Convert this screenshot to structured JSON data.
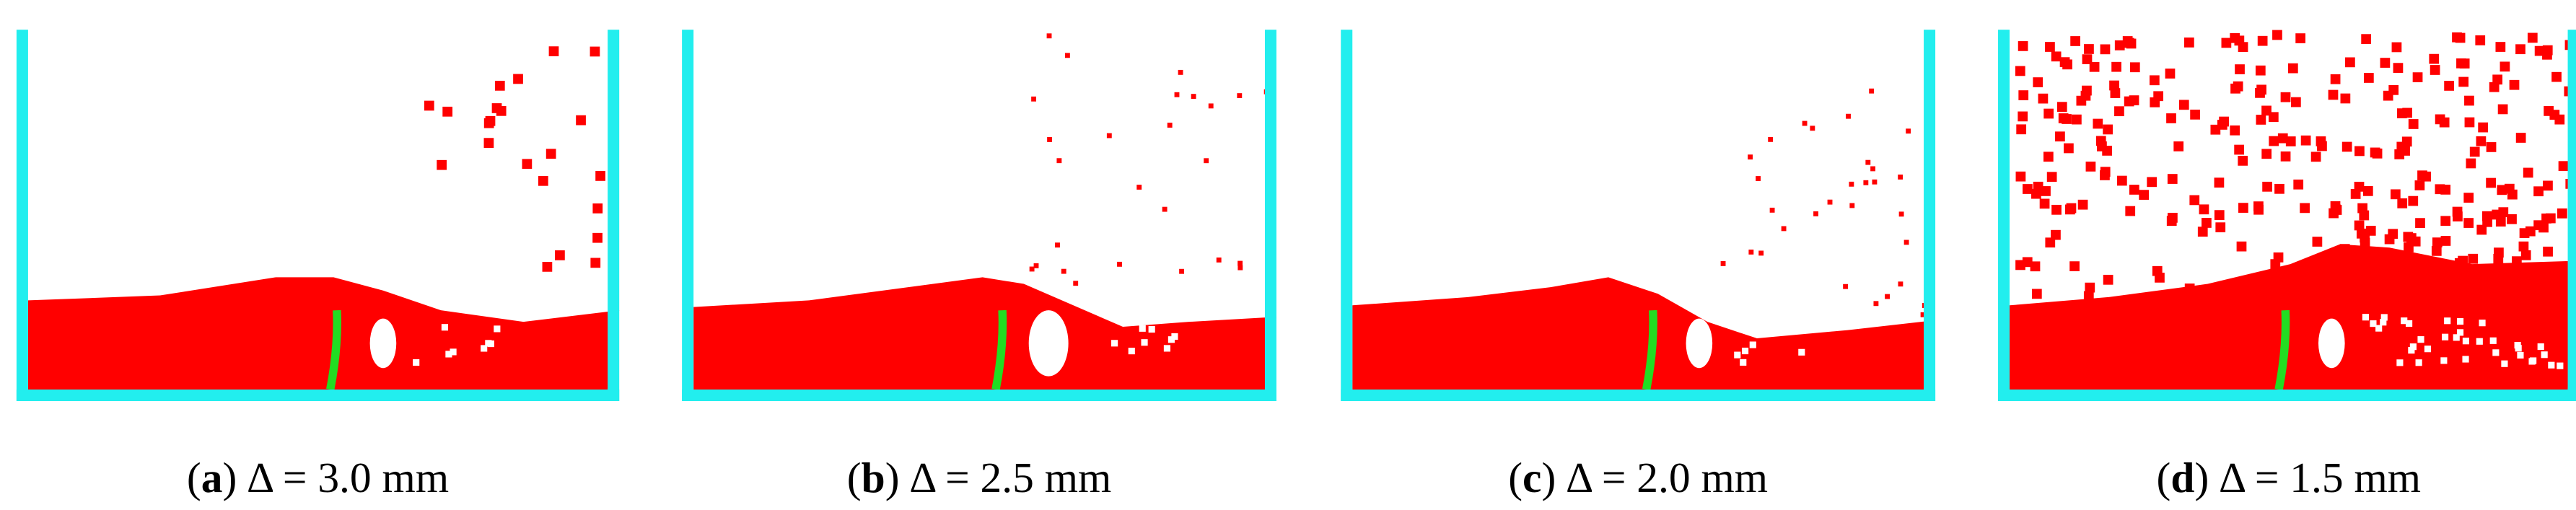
{
  "panels": [
    {
      "open": "(",
      "label": "a",
      "close": ")",
      "caption": "Δ = 3.0 mm"
    },
    {
      "open": "(",
      "label": "b",
      "close": ")",
      "caption": "Δ = 2.5 mm"
    },
    {
      "open": "(",
      "label": "c",
      "close": ")",
      "caption": "Δ = 2.0 mm"
    },
    {
      "open": "(",
      "label": "d",
      "close": ")",
      "caption": "Δ = 1.5 mm"
    }
  ]
}
